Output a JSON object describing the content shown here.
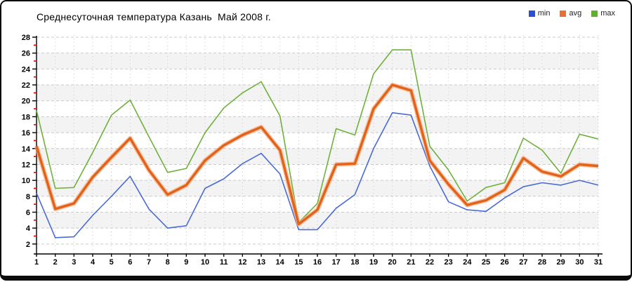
{
  "window": {
    "title": "Среднесуточная температура Казань  Май 2008 г."
  },
  "legend": [
    {
      "label": "min",
      "color": "#2a4fd7"
    },
    {
      "label": "avg",
      "color": "#ed6e2e"
    },
    {
      "label": "max",
      "color": "#61ae33"
    }
  ],
  "chart_data": {
    "type": "line",
    "title": "Среднесуточная температура Казань  Май 2008 г.",
    "xlabel": "",
    "ylabel": "",
    "x": [
      1,
      2,
      3,
      4,
      5,
      6,
      7,
      8,
      9,
      10,
      11,
      12,
      13,
      14,
      15,
      16,
      17,
      18,
      19,
      20,
      21,
      22,
      23,
      24,
      25,
      26,
      27,
      28,
      29,
      30,
      31
    ],
    "series": [
      {
        "name": "min",
        "color": "#4a6bd5",
        "line_width": 1.6,
        "values": [
          8.4,
          2.8,
          2.9,
          5.6,
          8.0,
          10.5,
          6.4,
          4.0,
          4.3,
          9.0,
          10.2,
          12.1,
          13.4,
          10.8,
          3.8,
          3.8,
          6.5,
          8.2,
          14.0,
          18.5,
          18.2,
          11.8,
          7.3,
          6.3,
          6.1,
          7.8,
          9.2,
          9.7,
          9.4,
          10.0,
          9.4
        ]
      },
      {
        "name": "avg",
        "color": "#e2611b",
        "halo_color": "#f6ae7c",
        "line_width": 3.4,
        "values": [
          14.3,
          6.4,
          7.1,
          10.4,
          12.9,
          15.3,
          11.3,
          8.2,
          9.4,
          12.5,
          14.4,
          15.7,
          16.7,
          13.8,
          4.5,
          6.3,
          12.0,
          12.1,
          19.0,
          22.0,
          21.3,
          12.5,
          9.5,
          6.9,
          7.5,
          8.8,
          12.8,
          11.1,
          10.5,
          12.0,
          11.8
        ]
      },
      {
        "name": "max",
        "color": "#6fb13c",
        "line_width": 1.6,
        "values": [
          18.8,
          9.0,
          9.1,
          13.5,
          18.2,
          20.1,
          15.5,
          11.0,
          11.5,
          16.0,
          19.1,
          21.0,
          22.4,
          18.1,
          4.7,
          7.1,
          16.5,
          15.7,
          23.4,
          26.4,
          26.4,
          14.3,
          11.3,
          7.4,
          9.1,
          9.7,
          15.3,
          13.8,
          10.9,
          15.8,
          15.2
        ]
      }
    ],
    "ylim": [
      2,
      28
    ],
    "yticks": [
      2,
      4,
      6,
      8,
      10,
      12,
      14,
      16,
      18,
      20,
      22,
      24,
      26,
      28
    ],
    "y_minor_ticks": [
      3,
      5,
      7,
      9,
      11,
      13,
      15,
      17,
      19,
      21,
      23,
      25,
      27
    ],
    "minor_tick_color": "#e00000",
    "grid": "dashed",
    "grid_color": "#c9c9c9",
    "band_color": "#f3f3f3",
    "axis_color": "#000000",
    "legend_position": "top-right"
  }
}
